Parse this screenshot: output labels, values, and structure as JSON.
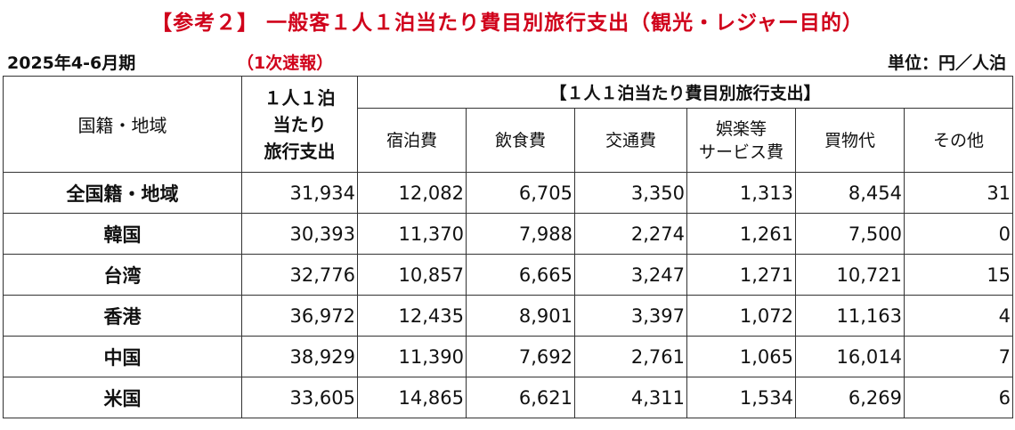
{
  "title": "【参考２】 一般客１人１泊当たり費目別旅行支出（観光・レジャー目的）",
  "period": "2025年4-6月期",
  "edition": "（1次速報）",
  "unit": "単位：円／人泊",
  "table": {
    "header": {
      "region": "国籍・地域",
      "total_line1": "１人１泊",
      "total_line2": "当たり",
      "total_line3": "旅行支出",
      "group": "【１人１泊当たり費目別旅行支出】",
      "categories": [
        {
          "line1": "宿泊費",
          "line2": ""
        },
        {
          "line1": "飲食費",
          "line2": ""
        },
        {
          "line1": "交通費",
          "line2": ""
        },
        {
          "line1": "娯楽等",
          "line2": "サービス費"
        },
        {
          "line1": "買物代",
          "line2": ""
        },
        {
          "line1": "その他",
          "line2": ""
        }
      ]
    },
    "rows": [
      {
        "region": "全国籍・地域",
        "total": "31,934",
        "values": [
          "12,082",
          "6,705",
          "3,350",
          "1,313",
          "8,454",
          "31"
        ]
      },
      {
        "region": "韓国",
        "total": "30,393",
        "values": [
          "11,370",
          "7,988",
          "2,274",
          "1,261",
          "7,500",
          "0"
        ]
      },
      {
        "region": "台湾",
        "total": "32,776",
        "values": [
          "10,857",
          "6,665",
          "3,247",
          "1,271",
          "10,721",
          "15"
        ]
      },
      {
        "region": "香港",
        "total": "36,972",
        "values": [
          "12,435",
          "8,901",
          "3,397",
          "1,072",
          "11,163",
          "4"
        ]
      },
      {
        "region": "中国",
        "total": "38,929",
        "values": [
          "11,390",
          "7,692",
          "2,761",
          "1,065",
          "16,014",
          "7"
        ]
      },
      {
        "region": "米国",
        "total": "33,605",
        "values": [
          "14,865",
          "6,621",
          "4,311",
          "1,534",
          "6,269",
          "6"
        ]
      }
    ]
  },
  "colors": {
    "accent_red": "#d0021b",
    "text": "#111111",
    "border": "#333333"
  }
}
